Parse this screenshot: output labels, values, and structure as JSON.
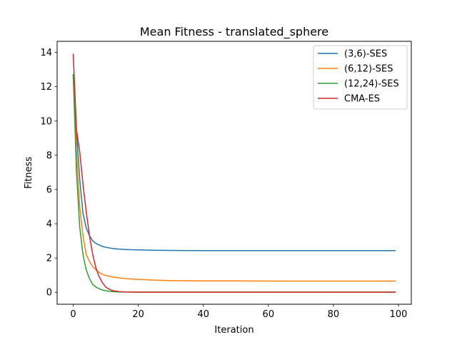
{
  "chart_data": {
    "type": "line",
    "title": "Mean Fitness - translated_sphere",
    "xlabel": "Iteration",
    "ylabel": "Fitness",
    "xlim": [
      -4.95,
      103.95
    ],
    "ylim": [
      -0.7,
      14.65
    ],
    "xticks": [
      0,
      20,
      40,
      60,
      80,
      100
    ],
    "yticks": [
      0,
      2,
      4,
      6,
      8,
      10,
      12,
      14
    ],
    "grid": false,
    "legend_position": "upper right",
    "series": [
      {
        "name": "(3,6)-SES",
        "color": "#1f77b4",
        "x": [
          0,
          1,
          2,
          3,
          4,
          5,
          6,
          7,
          8,
          9,
          10,
          12,
          14,
          16,
          18,
          20,
          25,
          30,
          40,
          50,
          60,
          70,
          80,
          90,
          99
        ],
        "y": [
          12.7,
          9.4,
          6.6,
          4.6,
          3.75,
          3.3,
          3.0,
          2.85,
          2.75,
          2.68,
          2.62,
          2.56,
          2.52,
          2.5,
          2.48,
          2.47,
          2.45,
          2.44,
          2.43,
          2.43,
          2.43,
          2.43,
          2.43,
          2.43,
          2.43
        ]
      },
      {
        "name": "(6,12)-SES",
        "color": "#ff7f0e",
        "x": [
          0,
          1,
          2,
          3,
          4,
          5,
          6,
          7,
          8,
          9,
          10,
          12,
          14,
          16,
          18,
          20,
          25,
          30,
          40,
          50,
          60,
          70,
          80,
          90,
          99
        ],
        "y": [
          12.7,
          8.2,
          5.0,
          3.3,
          2.2,
          1.8,
          1.5,
          1.3,
          1.15,
          1.05,
          0.98,
          0.9,
          0.84,
          0.8,
          0.77,
          0.75,
          0.71,
          0.68,
          0.66,
          0.66,
          0.65,
          0.65,
          0.65,
          0.65,
          0.65
        ]
      },
      {
        "name": "(12,24)-SES",
        "color": "#2ca02c",
        "x": [
          0,
          1,
          2,
          3,
          4,
          5,
          6,
          7,
          8,
          9,
          10,
          11,
          12,
          14,
          16,
          18,
          20,
          25,
          30,
          40,
          50,
          60,
          70,
          80,
          90,
          99
        ],
        "y": [
          12.7,
          7.0,
          3.8,
          2.2,
          1.3,
          0.8,
          0.45,
          0.3,
          0.2,
          0.13,
          0.09,
          0.06,
          0.04,
          0.02,
          0.01,
          0.01,
          0.01,
          0.01,
          0.01,
          0.01,
          0.01,
          0.01,
          0.01,
          0.01,
          0.01,
          0.01
        ]
      },
      {
        "name": "CMA-ES",
        "color": "#d62728",
        "x": [
          0,
          1,
          2,
          3,
          4,
          5,
          6,
          7,
          8,
          9,
          10,
          11,
          12,
          14,
          16,
          18,
          20,
          25,
          30,
          40,
          50,
          60,
          70,
          80,
          90,
          99
        ],
        "y": [
          13.9,
          9.5,
          8.2,
          6.3,
          4.7,
          3.3,
          2.2,
          1.4,
          0.9,
          0.55,
          0.3,
          0.18,
          0.1,
          0.04,
          0.02,
          0.01,
          0.0,
          0.0,
          0.0,
          0.0,
          0.0,
          0.0,
          0.0,
          0.0,
          0.0,
          0.0
        ]
      }
    ]
  }
}
